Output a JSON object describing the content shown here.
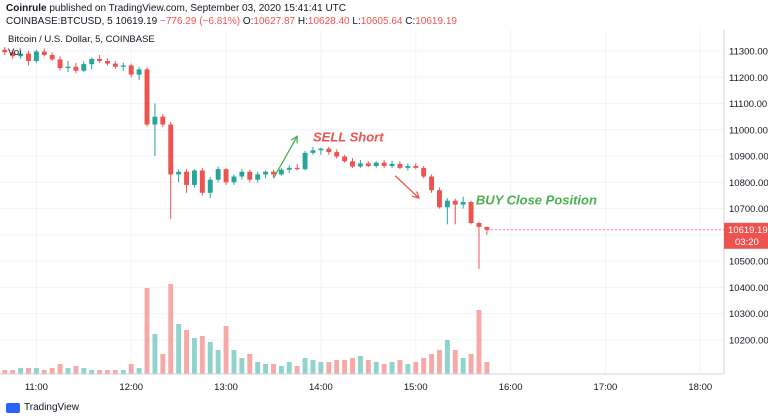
{
  "header": {
    "publisher": "Coinrule",
    "published_text": "published on TradingView.com, September 03, 2020 15:41:41 UTC",
    "symbol": "COINBASE:BTCUSD, 5",
    "last": "10619.19",
    "change": "−776.29 (−6.81%)",
    "open_label": "O:",
    "open": "10627.87",
    "high_label": "H:",
    "high": "10628.40",
    "low_label": "L:",
    "low": "10605.64",
    "close_label": "C:",
    "close": "10619.19"
  },
  "footer": {
    "brand": "TradingView"
  },
  "chart_data": {
    "type": "candlestick",
    "title": "Bitcoin / U.S. Dollar, 5, COINBASE",
    "volume_label": "Vol",
    "price_axis": {
      "min": 10070,
      "max": 11380,
      "ticks": [
        10200,
        10300,
        10400,
        10500,
        10600,
        10700,
        10800,
        10900,
        11000,
        11100,
        11200,
        11300
      ]
    },
    "time_axis": {
      "start": "10:37",
      "end": "18:15",
      "tick_labels": [
        "11:00",
        "12:00",
        "13:00",
        "14:00",
        "15:00",
        "16:00",
        "17:00",
        "18:00"
      ]
    },
    "last_price": {
      "value": 10619.19,
      "label": "10619.19",
      "countdown": "03:20",
      "color": "#ef5350"
    },
    "colors": {
      "up": "#26a69a",
      "down": "#ef5350",
      "up_vol": "#8fd3cb",
      "down_vol": "#f7a9a7"
    },
    "annotations": [
      {
        "text": "SELL Short",
        "color": "#ef5350",
        "time": "13:55",
        "price": 10955
      },
      {
        "text": "BUY Close Position",
        "color": "#4caf50",
        "time": "15:38",
        "price": 10715
      }
    ],
    "arrows": [
      {
        "color": "#4caf50",
        "from_time": "13:30",
        "from_price": 10815,
        "to_time": "13:45",
        "to_price": 10975
      },
      {
        "color": "#ef5350",
        "from_time": "14:47",
        "from_price": 10825,
        "to_time": "15:02",
        "to_price": 10740
      }
    ],
    "candles": [
      {
        "t": "10:40",
        "o": 11305,
        "h": 11315,
        "l": 11285,
        "c": 11295,
        "v": 2
      },
      {
        "t": "10:45",
        "o": 11295,
        "h": 11305,
        "l": 11270,
        "c": 11280,
        "v": 2
      },
      {
        "t": "10:50",
        "o": 11280,
        "h": 11300,
        "l": 11270,
        "c": 11290,
        "v": 3
      },
      {
        "t": "10:55",
        "o": 11290,
        "h": 11300,
        "l": 11245,
        "c": 11262,
        "v": 3
      },
      {
        "t": "11:00",
        "o": 11262,
        "h": 11305,
        "l": 11255,
        "c": 11298,
        "v": 3
      },
      {
        "t": "11:05",
        "o": 11298,
        "h": 11310,
        "l": 11280,
        "c": 11285,
        "v": 2
      },
      {
        "t": "11:10",
        "o": 11285,
        "h": 11295,
        "l": 11262,
        "c": 11268,
        "v": 3
      },
      {
        "t": "11:15",
        "o": 11268,
        "h": 11280,
        "l": 11225,
        "c": 11235,
        "v": 5
      },
      {
        "t": "11:20",
        "o": 11235,
        "h": 11262,
        "l": 11220,
        "c": 11240,
        "v": 3
      },
      {
        "t": "11:25",
        "o": 11240,
        "h": 11255,
        "l": 11215,
        "c": 11225,
        "v": 4
      },
      {
        "t": "11:30",
        "o": 11225,
        "h": 11260,
        "l": 11220,
        "c": 11250,
        "v": 3
      },
      {
        "t": "11:35",
        "o": 11250,
        "h": 11275,
        "l": 11230,
        "c": 11270,
        "v": 2
      },
      {
        "t": "11:40",
        "o": 11270,
        "h": 11285,
        "l": 11255,
        "c": 11262,
        "v": 2
      },
      {
        "t": "11:45",
        "o": 11262,
        "h": 11272,
        "l": 11245,
        "c": 11252,
        "v": 2
      },
      {
        "t": "11:50",
        "o": 11252,
        "h": 11262,
        "l": 11232,
        "c": 11240,
        "v": 2
      },
      {
        "t": "11:55",
        "o": 11240,
        "h": 11255,
        "l": 11225,
        "c": 11245,
        "v": 2
      },
      {
        "t": "12:00",
        "o": 11245,
        "h": 11252,
        "l": 11200,
        "c": 11210,
        "v": 5
      },
      {
        "t": "12:05",
        "o": 11210,
        "h": 11240,
        "l": 11190,
        "c": 11230,
        "v": 3
      },
      {
        "t": "12:10",
        "o": 11230,
        "h": 11238,
        "l": 11012,
        "c": 11020,
        "v": 43
      },
      {
        "t": "12:15",
        "o": 11020,
        "h": 11100,
        "l": 10900,
        "c": 11050,
        "v": 20
      },
      {
        "t": "12:20",
        "o": 11050,
        "h": 11060,
        "l": 11010,
        "c": 11020,
        "v": 10
      },
      {
        "t": "12:25",
        "o": 11020,
        "h": 11030,
        "l": 10660,
        "c": 10830,
        "v": 45
      },
      {
        "t": "12:30",
        "o": 10830,
        "h": 10850,
        "l": 10800,
        "c": 10840,
        "v": 25
      },
      {
        "t": "12:35",
        "o": 10840,
        "h": 10850,
        "l": 10760,
        "c": 10790,
        "v": 22
      },
      {
        "t": "12:40",
        "o": 10790,
        "h": 10850,
        "l": 10780,
        "c": 10845,
        "v": 18
      },
      {
        "t": "12:45",
        "o": 10845,
        "h": 10855,
        "l": 10750,
        "c": 10760,
        "v": 19
      },
      {
        "t": "12:50",
        "o": 10760,
        "h": 10820,
        "l": 10740,
        "c": 10810,
        "v": 16
      },
      {
        "t": "12:55",
        "o": 10810,
        "h": 10860,
        "l": 10800,
        "c": 10850,
        "v": 12
      },
      {
        "t": "13:00",
        "o": 10850,
        "h": 10855,
        "l": 10790,
        "c": 10800,
        "v": 24
      },
      {
        "t": "13:05",
        "o": 10800,
        "h": 10830,
        "l": 10790,
        "c": 10822,
        "v": 12
      },
      {
        "t": "13:10",
        "o": 10822,
        "h": 10850,
        "l": 10810,
        "c": 10840,
        "v": 8
      },
      {
        "t": "13:15",
        "o": 10840,
        "h": 10848,
        "l": 10800,
        "c": 10810,
        "v": 10
      },
      {
        "t": "13:20",
        "o": 10810,
        "h": 10840,
        "l": 10800,
        "c": 10830,
        "v": 6
      },
      {
        "t": "13:25",
        "o": 10830,
        "h": 10845,
        "l": 10815,
        "c": 10840,
        "v": 5
      },
      {
        "t": "13:30",
        "o": 10840,
        "h": 10848,
        "l": 10820,
        "c": 10830,
        "v": 5
      },
      {
        "t": "13:35",
        "o": 10830,
        "h": 10855,
        "l": 10825,
        "c": 10848,
        "v": 4
      },
      {
        "t": "13:40",
        "o": 10848,
        "h": 10865,
        "l": 10835,
        "c": 10855,
        "v": 6
      },
      {
        "t": "13:45",
        "o": 10855,
        "h": 10870,
        "l": 10845,
        "c": 10850,
        "v": 4
      },
      {
        "t": "13:50",
        "o": 10850,
        "h": 10920,
        "l": 10845,
        "c": 10912,
        "v": 8
      },
      {
        "t": "13:55",
        "o": 10912,
        "h": 10935,
        "l": 10905,
        "c": 10922,
        "v": 7
      },
      {
        "t": "14:00",
        "o": 10922,
        "h": 10932,
        "l": 10905,
        "c": 10928,
        "v": 6
      },
      {
        "t": "14:05",
        "o": 10928,
        "h": 10935,
        "l": 10905,
        "c": 10915,
        "v": 6
      },
      {
        "t": "14:10",
        "o": 10915,
        "h": 10925,
        "l": 10890,
        "c": 10898,
        "v": 7
      },
      {
        "t": "14:15",
        "o": 10898,
        "h": 10905,
        "l": 10875,
        "c": 10880,
        "v": 7
      },
      {
        "t": "14:20",
        "o": 10880,
        "h": 10892,
        "l": 10855,
        "c": 10860,
        "v": 8
      },
      {
        "t": "14:25",
        "o": 10860,
        "h": 10885,
        "l": 10855,
        "c": 10872,
        "v": 9
      },
      {
        "t": "14:30",
        "o": 10872,
        "h": 10880,
        "l": 10858,
        "c": 10862,
        "v": 7
      },
      {
        "t": "14:35",
        "o": 10862,
        "h": 10880,
        "l": 10855,
        "c": 10875,
        "v": 6
      },
      {
        "t": "14:40",
        "o": 10875,
        "h": 10885,
        "l": 10855,
        "c": 10862,
        "v": 5
      },
      {
        "t": "14:45",
        "o": 10862,
        "h": 10882,
        "l": 10855,
        "c": 10870,
        "v": 6
      },
      {
        "t": "14:50",
        "o": 10870,
        "h": 10880,
        "l": 10850,
        "c": 10855,
        "v": 7
      },
      {
        "t": "14:55",
        "o": 10855,
        "h": 10872,
        "l": 10845,
        "c": 10862,
        "v": 5
      },
      {
        "t": "15:00",
        "o": 10862,
        "h": 10872,
        "l": 10850,
        "c": 10855,
        "v": 6
      },
      {
        "t": "15:05",
        "o": 10855,
        "h": 10862,
        "l": 10815,
        "c": 10822,
        "v": 8
      },
      {
        "t": "15:10",
        "o": 10822,
        "h": 10830,
        "l": 10760,
        "c": 10770,
        "v": 10
      },
      {
        "t": "15:15",
        "o": 10770,
        "h": 10780,
        "l": 10700,
        "c": 10705,
        "v": 12
      },
      {
        "t": "15:20",
        "o": 10705,
        "h": 10740,
        "l": 10640,
        "c": 10730,
        "v": 17
      },
      {
        "t": "15:25",
        "o": 10730,
        "h": 10738,
        "l": 10640,
        "c": 10715,
        "v": 12
      },
      {
        "t": "15:30",
        "o": 10715,
        "h": 10745,
        "l": 10700,
        "c": 10725,
        "v": 8
      },
      {
        "t": "15:35",
        "o": 10725,
        "h": 10730,
        "l": 10640,
        "c": 10645,
        "v": 10
      },
      {
        "t": "15:40",
        "o": 10645,
        "h": 10650,
        "l": 10470,
        "c": 10630,
        "v": 32
      },
      {
        "t": "15:45",
        "o": 10630,
        "h": 10632,
        "l": 10600,
        "c": 10619,
        "v": 6
      }
    ]
  }
}
